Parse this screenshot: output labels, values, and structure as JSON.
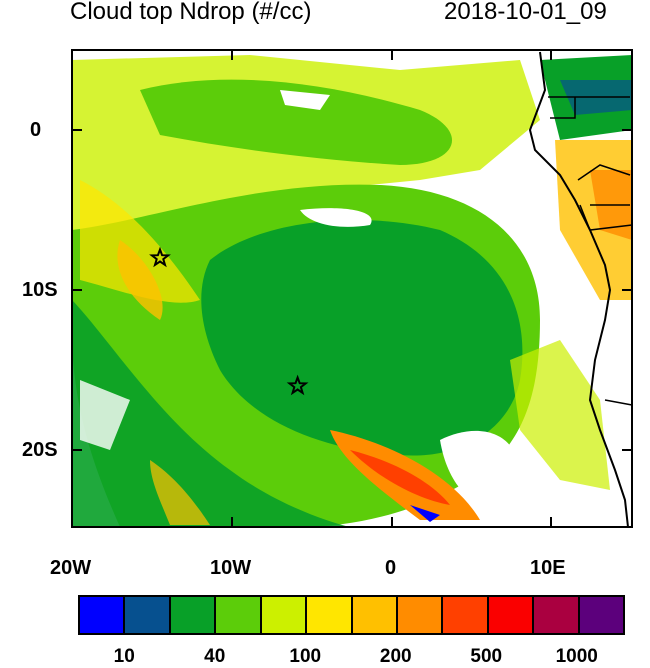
{
  "title": "Cloud top Ndrop (#/cc)",
  "timestamp": "2018-10-01_09",
  "lat_labels": [
    "0",
    "10S",
    "20S"
  ],
  "lon_labels": [
    "20W",
    "10W",
    "0",
    "10E"
  ],
  "colorbar": {
    "colors": [
      "#0000ff",
      "#06508f",
      "#08a028",
      "#5ccd0a",
      "#ccf000",
      "#ffe600",
      "#ffc000",
      "#ff8c00",
      "#ff4000",
      "#fa0000",
      "#aa0040",
      "#5c007c"
    ],
    "labels": [
      "10",
      "40",
      "100",
      "200",
      "500",
      "1000"
    ]
  },
  "markers": [
    {
      "name": "star",
      "lon": -14.5,
      "lat": -8
    },
    {
      "name": "star",
      "lon": -5.9,
      "lat": -16
    }
  ]
}
